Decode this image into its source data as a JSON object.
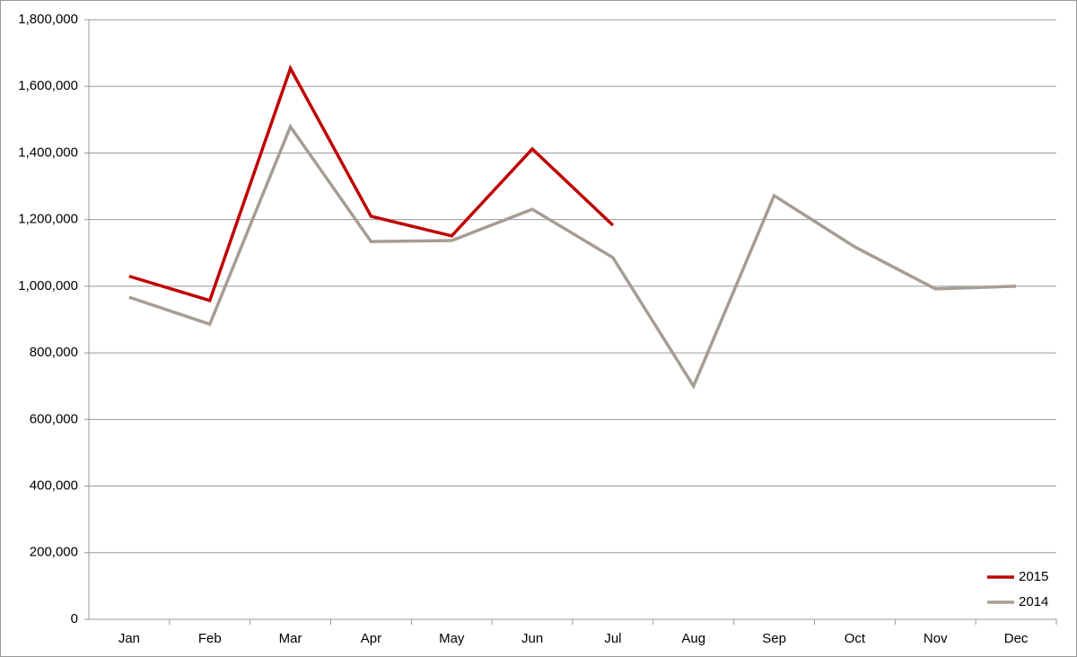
{
  "chart_data": {
    "type": "line",
    "categories": [
      "Jan",
      "Feb",
      "Mar",
      "Apr",
      "May",
      "Jun",
      "Jul",
      "Aug",
      "Sep",
      "Oct",
      "Nov",
      "Dec"
    ],
    "series": [
      {
        "name": "2015",
        "color": "#c00000",
        "values": [
          1030000,
          957000,
          1654000,
          1210000,
          1151000,
          1412000,
          1183000,
          null,
          null,
          null,
          null,
          null
        ]
      },
      {
        "name": "2014",
        "color": "#a59d93",
        "values": [
          967000,
          886000,
          1479000,
          1134000,
          1137000,
          1231000,
          1086000,
          700000,
          1272000,
          1118000,
          992000,
          1000000
        ]
      }
    ],
    "ylim": [
      0,
      1800000
    ],
    "yticks": [
      0,
      {
        "value": 200000,
        "label": "200,000"
      },
      {
        "value": 400000,
        "label": "400,000"
      },
      {
        "value": 600000,
        "label": "600,000"
      },
      {
        "value": 800000,
        "label": "800,000"
      },
      {
        "value": 1000000,
        "label": "1,000,000"
      },
      {
        "value": 1200000,
        "label": "1,200,000"
      },
      {
        "value": 1400000,
        "label": "1,400,000"
      },
      {
        "value": 1600000,
        "label": "1,600,000"
      },
      {
        "value": 1800000,
        "label": "1,800,000"
      }
    ],
    "grid": true,
    "legend": "lower right"
  }
}
